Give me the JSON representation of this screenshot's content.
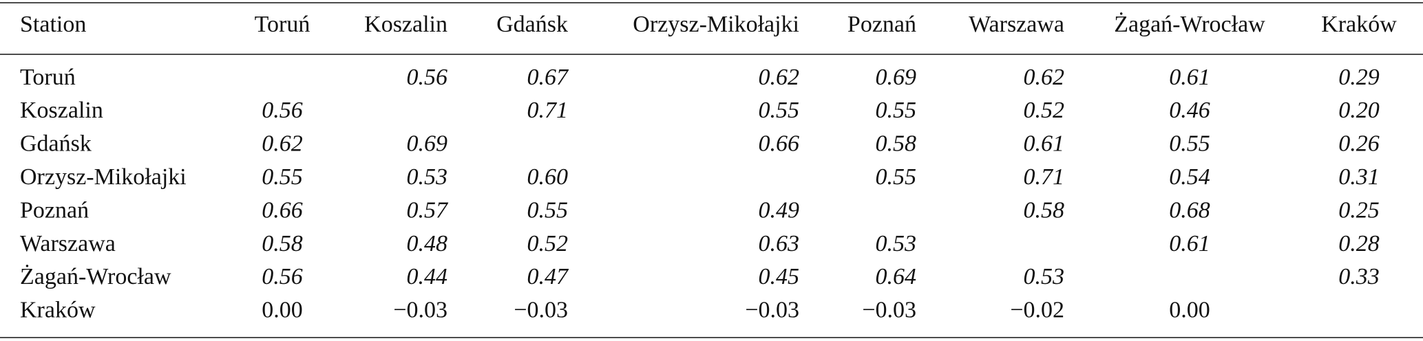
{
  "table": {
    "header": [
      "Station",
      "Toruń",
      "Koszalin",
      "Gdańsk",
      "Orzysz-Mikołajki",
      "Poznań",
      "Warszawa",
      "Żagań-Wrocław",
      "Kraków"
    ],
    "rows": [
      [
        "Toruń",
        null,
        "0.56",
        "0.67",
        "0.62",
        "0.69",
        "0.62",
        "0.61",
        "0.29"
      ],
      [
        "Koszalin",
        "0.56",
        null,
        "0.71",
        "0.55",
        "0.55",
        "0.52",
        "0.46",
        "0.20"
      ],
      [
        "Gdańsk",
        "0.62",
        "0.69",
        null,
        "0.66",
        "0.58",
        "0.61",
        "0.55",
        "0.26"
      ],
      [
        "Orzysz-Mikołajki",
        "0.55",
        "0.53",
        "0.60",
        null,
        "0.55",
        "0.71",
        "0.54",
        "0.31"
      ],
      [
        "Poznań",
        "0.66",
        "0.57",
        "0.55",
        "0.49",
        null,
        "0.58",
        "0.68",
        "0.25"
      ],
      [
        "Warszawa",
        "0.58",
        "0.48",
        "0.52",
        "0.63",
        "0.53",
        null,
        "0.61",
        "0.28"
      ],
      [
        "Żagań-Wrocław",
        "0.56",
        "0.44",
        "0.47",
        "0.45",
        "0.64",
        "0.53",
        null,
        "0.33"
      ],
      [
        "Kraków",
        "0.00",
        "−0.03",
        "−0.03",
        "−0.03",
        "−0.03",
        "−0.02",
        "0.00",
        null
      ]
    ]
  }
}
